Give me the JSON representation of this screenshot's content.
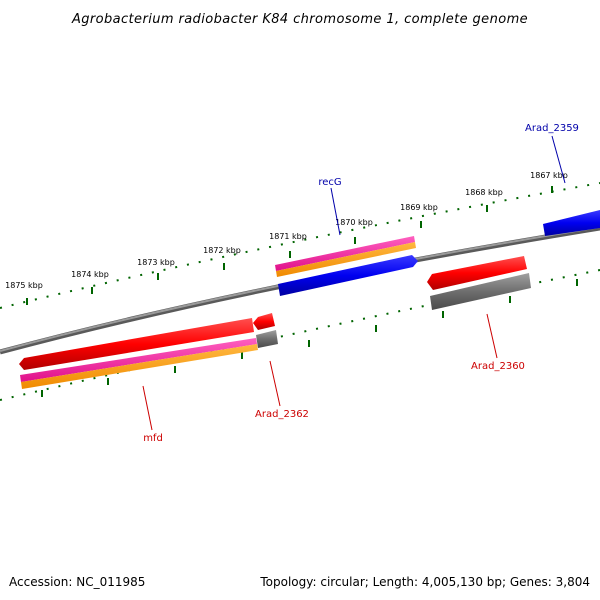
{
  "title": "Agrobacterium radiobacter K84 chromosome 1, complete genome",
  "footer": {
    "accession": "Accession: NC_011985",
    "summary": "Topology: circular; Length: 4,005,130 bp; Genes: 3,804"
  },
  "scale_labels": [
    "1875 kbp",
    "1874 kbp",
    "1873 kbp",
    "1872 kbp",
    "1871 kbp",
    "1870 kbp",
    "1869 kbp",
    "1868 kbp",
    "1867 kbp"
  ],
  "gene_labels": {
    "recG": "recG",
    "arad_2359": "Arad_2359",
    "arad_2360": "Arad_2360",
    "arad_2362": "Arad_2362",
    "mfd": "mfd"
  },
  "colors": {
    "backbone": "#7a7a7a",
    "cds": "#ff0000",
    "gene": "#808080",
    "feature_pink": "#ff1493",
    "feature_orange": "#ff9900",
    "feature_blue": "#0000ff",
    "tick": "#006400",
    "label_blue": "#0000aa",
    "label_red": "#cc0000"
  }
}
